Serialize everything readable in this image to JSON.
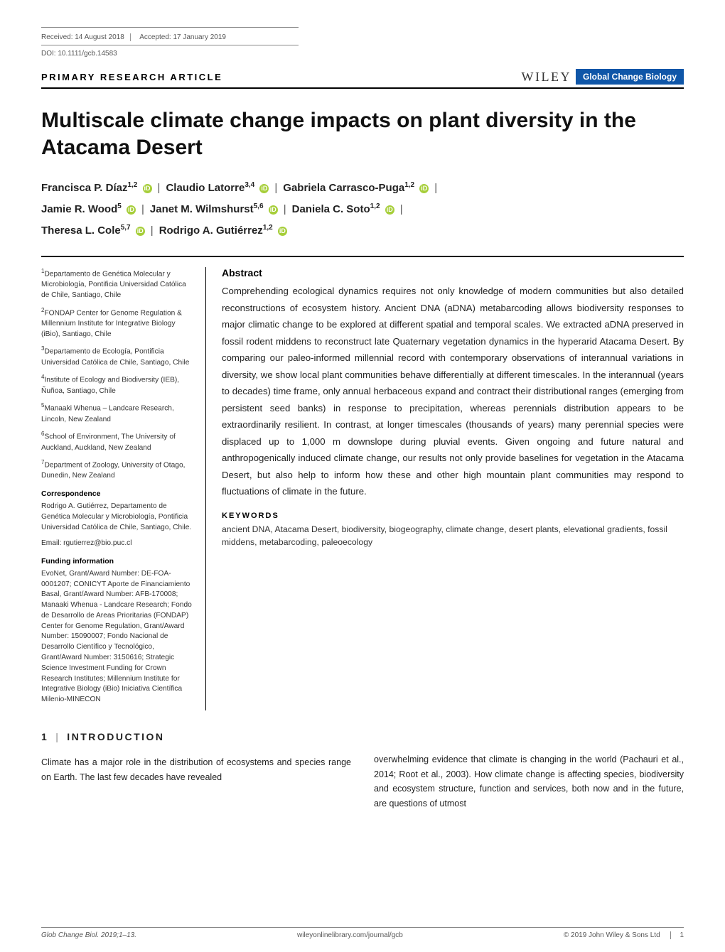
{
  "meta": {
    "received": "Received: 14 August 2018",
    "accepted": "Accepted: 17 January 2019",
    "doi": "DOI: 10.1111/gcb.14583",
    "article_type": "PRIMARY RESEARCH ARTICLE",
    "publisher": "WILEY",
    "journal_badge": "Global Change Biology"
  },
  "title": "Multiscale climate change impacts on plant diversity in the Atacama Desert",
  "authors": [
    {
      "name": "Francisca P. Díaz",
      "aff": "1,2",
      "orcid": true
    },
    {
      "name": "Claudio Latorre",
      "aff": "3,4",
      "orcid": true
    },
    {
      "name": "Gabriela Carrasco-Puga",
      "aff": "1,2",
      "orcid": true
    },
    {
      "name": "Jamie R. Wood",
      "aff": "5",
      "orcid": true
    },
    {
      "name": "Janet M. Wilmshurst",
      "aff": "5,6",
      "orcid": true
    },
    {
      "name": "Daniela C. Soto",
      "aff": "1,2",
      "orcid": true
    },
    {
      "name": "Theresa L. Cole",
      "aff": "5,7",
      "orcid": true
    },
    {
      "name": "Rodrigo A. Gutiérrez",
      "aff": "1,2",
      "orcid": true
    }
  ],
  "affiliations": [
    {
      "num": "1",
      "text": "Departamento de Genética Molecular y Microbiología, Pontificia Universidad Católica de Chile, Santiago, Chile"
    },
    {
      "num": "2",
      "text": "FONDAP Center for Genome Regulation & Millennium Institute for Integrative Biology (iBio), Santiago, Chile"
    },
    {
      "num": "3",
      "text": "Departamento de Ecología, Pontificia Universidad Católica de Chile, Santiago, Chile"
    },
    {
      "num": "4",
      "text": "Institute of Ecology and Biodiversity (IEB), Ñuñoa, Santiago, Chile"
    },
    {
      "num": "5",
      "text": "Manaaki Whenua – Landcare Research, Lincoln, New Zealand"
    },
    {
      "num": "6",
      "text": "School of Environment, The University of Auckland, Auckland, New Zealand"
    },
    {
      "num": "7",
      "text": "Department of Zoology, University of Otago, Dunedin, New Zealand"
    }
  ],
  "correspondence": {
    "head": "Correspondence",
    "body": "Rodrigo A. Gutiérrez, Departamento de Genética Molecular y Microbiología, Pontificia Universidad Católica de Chile, Santiago, Chile.",
    "email": "Email: rgutierrez@bio.puc.cl"
  },
  "funding": {
    "head": "Funding information",
    "body": "EvoNet, Grant/Award Number: DE-FOA-0001207; CONICYT Aporte de Financiamiento Basal, Grant/Award Number: AFB-170008; Manaaki Whenua - Landcare Research; Fondo de Desarrollo de Areas Prioritarias (FONDAP) Center for Genome Regulation, Grant/Award Number: 15090007; Fondo Nacional de Desarrollo Científico y Tecnológico, Grant/Award Number: 3150616; Strategic Science Investment Funding for Crown Research Institutes; Millennium Institute for Integrative Biology (iBio) Iniciativa Científica Milenio-MINECON"
  },
  "abstract": {
    "head": "Abstract",
    "body": "Comprehending ecological dynamics requires not only knowledge of modern communities but also detailed reconstructions of ecosystem history. Ancient DNA (aDNA) metabarcoding allows biodiversity responses to major climatic change to be explored at different spatial and temporal scales. We extracted aDNA preserved in fossil rodent middens to reconstruct late Quaternary vegetation dynamics in the hyperarid Atacama Desert. By comparing our paleo-informed millennial record with contemporary observations of interannual variations in diversity, we show local plant communities behave differentially at different timescales. In the interannual (years to decades) time frame, only annual herbaceous expand and contract their distributional ranges (emerging from persistent seed banks) in response to precipitation, whereas perennials distribution appears to be extraordinarily resilient. In contrast, at longer timescales (thousands of years) many perennial species were displaced up to 1,000 m downslope during pluvial events. Given ongoing and future natural and anthropogenically induced climate change, our results not only provide baselines for vegetation in the Atacama Desert, but also help to inform how these and other high mountain plant communities may respond to fluctuations of climate in the future."
  },
  "keywords": {
    "head": "KEYWORDS",
    "body": "ancient DNA, Atacama Desert, biodiversity, biogeography, climate change, desert plants, elevational gradients, fossil middens, metabarcoding, paleoecology"
  },
  "intro": {
    "heading_num": "1",
    "heading_text": "INTRODUCTION",
    "col1": "Climate has a major role in the distribution of ecosystems and species range on Earth. The last few decades have revealed",
    "col2": "overwhelming evidence that climate is changing in the world (Pachauri et al., 2014; Root et al., 2003). How climate change is affecting species, biodiversity and ecosystem structure, function and services, both now and in the future, are questions of utmost"
  },
  "footer": {
    "left": "Glob Change Biol. 2019;1–13.",
    "center": "wileyonlinelibrary.com/journal/gcb",
    "right": "© 2019 John Wiley & Sons Ltd",
    "page": "1"
  },
  "colors": {
    "badge_bg": "#0f56a8",
    "orcid_bg": "#a6ce39",
    "text": "#000000",
    "muted": "#555555"
  }
}
